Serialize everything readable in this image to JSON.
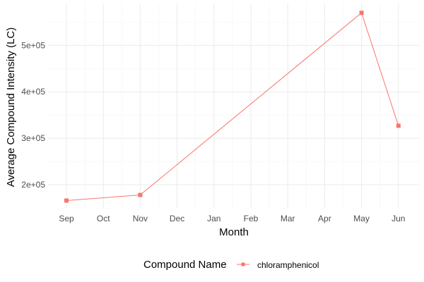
{
  "chart_data": {
    "type": "line",
    "title": "",
    "xlabel": "Month",
    "ylabel": "Average Compound Intensity (LC)",
    "categories": [
      "Sep",
      "Oct",
      "Nov",
      "Dec",
      "Jan",
      "Feb",
      "Mar",
      "Apr",
      "May",
      "Jun"
    ],
    "y_ticks": [
      200000,
      300000,
      400000,
      500000
    ],
    "y_tick_labels": [
      "2e+05",
      "3e+05",
      "4e+05",
      "5e+05"
    ],
    "ylim": [
      150000,
      590000
    ],
    "grid": true,
    "legend": {
      "position": "bottom",
      "title": "Compound Name"
    },
    "series": [
      {
        "name": "chloramphenicol",
        "color": "#F8766D",
        "points": [
          {
            "x": "Sep",
            "y": 166000
          },
          {
            "x": "Nov",
            "y": 178000
          },
          {
            "x": "May",
            "y": 570000
          },
          {
            "x": "Jun",
            "y": 327000
          }
        ]
      }
    ]
  }
}
